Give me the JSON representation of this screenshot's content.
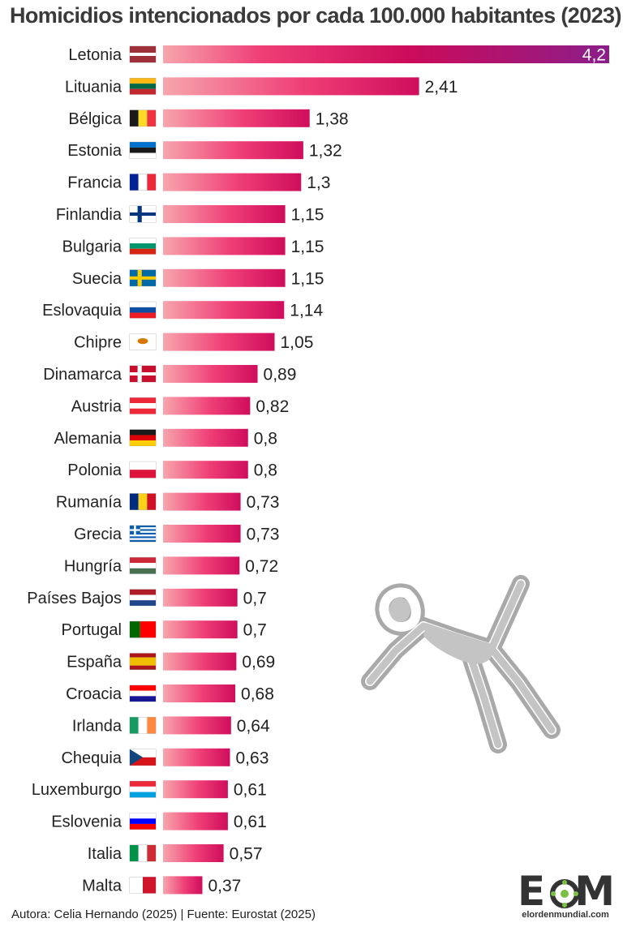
{
  "title": "Homicidios intencionados por cada 100.000 habitantes (2023)",
  "footer": "Autora: Celia Hernando (2025) | Fuente: Eurostat (2025)",
  "logo": {
    "letters": "EOM",
    "site": "elordenmundial.com"
  },
  "colors": {
    "bar_start": "#f7a5ad",
    "bar_mid": "#f03a74",
    "bar_deep": "#cc0b5a",
    "bar_top_end": "#8b1e8a",
    "text": "#222222"
  },
  "icons": {
    "figure": "body-outline-icon"
  },
  "chart_data": {
    "type": "bar",
    "orientation": "horizontal",
    "title": "Homicidios intencionados por cada 100.000 habitantes (2023)",
    "xlabel": "",
    "ylabel": "",
    "xlim": [
      0,
      4.2
    ],
    "grid": false,
    "legend": "none",
    "bars": [
      {
        "label": "Letonia",
        "value": 4.2,
        "value_label": "4,2",
        "flag": [
          [
            "#9e3039",
            "#ffffff",
            "#9e3039"
          ],
          "h",
          [
            2,
            1,
            2
          ]
        ]
      },
      {
        "label": "Lituania",
        "value": 2.41,
        "value_label": "2,41",
        "flag": [
          [
            "#fdb913",
            "#006a44",
            "#c1272d"
          ],
          "h"
        ]
      },
      {
        "label": "Bélgica",
        "value": 1.38,
        "value_label": "1,38",
        "flag": [
          [
            "#1a1a1a",
            "#fdda24",
            "#ef3340"
          ],
          "v"
        ]
      },
      {
        "label": "Estonia",
        "value": 1.32,
        "value_label": "1,32",
        "flag": [
          [
            "#0072ce",
            "#1a1a1a",
            "#ffffff"
          ],
          "h"
        ]
      },
      {
        "label": "Francia",
        "value": 1.3,
        "value_label": "1,3",
        "flag": [
          [
            "#002395",
            "#ffffff",
            "#ed2939"
          ],
          "v"
        ]
      },
      {
        "label": "Finlandia",
        "value": 1.15,
        "value_label": "1,15",
        "flag": [
          [
            "#ffffff",
            "#003580"
          ],
          "nordic"
        ]
      },
      {
        "label": "Bulgaria",
        "value": 1.15,
        "value_label": "1,15",
        "flag": [
          [
            "#ffffff",
            "#00966e",
            "#d62612"
          ],
          "h"
        ]
      },
      {
        "label": "Suecia",
        "value": 1.15,
        "value_label": "1,15",
        "flag": [
          [
            "#006aa7",
            "#fecc00"
          ],
          "nordic"
        ]
      },
      {
        "label": "Eslovaquia",
        "value": 1.14,
        "value_label": "1,14",
        "flag": [
          [
            "#ffffff",
            "#0b4ea2",
            "#ee1c25"
          ],
          "h"
        ]
      },
      {
        "label": "Chipre",
        "value": 1.05,
        "value_label": "1,05",
        "flag": [
          [
            "#ffffff",
            "#d57800"
          ],
          "center"
        ]
      },
      {
        "label": "Dinamarca",
        "value": 0.89,
        "value_label": "0,89",
        "flag": [
          [
            "#c8102e",
            "#ffffff"
          ],
          "nordic"
        ]
      },
      {
        "label": "Austria",
        "value": 0.82,
        "value_label": "0,82",
        "flag": [
          [
            "#ed2939",
            "#ffffff",
            "#ed2939"
          ],
          "h"
        ]
      },
      {
        "label": "Alemania",
        "value": 0.8,
        "value_label": "0,8",
        "flag": [
          [
            "#1a1a1a",
            "#dd0000",
            "#ffce00"
          ],
          "h"
        ]
      },
      {
        "label": "Polonia",
        "value": 0.8,
        "value_label": "0,8",
        "flag": [
          [
            "#ffffff",
            "#dc143c"
          ],
          "h"
        ]
      },
      {
        "label": "Rumanía",
        "value": 0.73,
        "value_label": "0,73",
        "flag": [
          [
            "#002b7f",
            "#fcd116",
            "#ce1126"
          ],
          "v"
        ]
      },
      {
        "label": "Grecia",
        "value": 0.73,
        "value_label": "0,73",
        "flag": [
          [
            "#0d5eaf",
            "#ffffff"
          ],
          "stripes9"
        ]
      },
      {
        "label": "Hungría",
        "value": 0.72,
        "value_label": "0,72",
        "flag": [
          [
            "#ce2939",
            "#ffffff",
            "#477050"
          ],
          "h"
        ]
      },
      {
        "label": "Países Bajos",
        "value": 0.7,
        "value_label": "0,7",
        "flag": [
          [
            "#ae1c28",
            "#ffffff",
            "#21468b"
          ],
          "h"
        ]
      },
      {
        "label": "Portugal",
        "value": 0.7,
        "value_label": "0,7",
        "flag": [
          [
            "#006600",
            "#ff0000"
          ],
          "v",
          [
            2,
            3
          ]
        ]
      },
      {
        "label": "España",
        "value": 0.69,
        "value_label": "0,69",
        "flag": [
          [
            "#aa151b",
            "#f1bf00",
            "#aa151b"
          ],
          "h",
          [
            1,
            2,
            1
          ]
        ]
      },
      {
        "label": "Croacia",
        "value": 0.68,
        "value_label": "0,68",
        "flag": [
          [
            "#ff0000",
            "#ffffff",
            "#171796"
          ],
          "h"
        ]
      },
      {
        "label": "Irlanda",
        "value": 0.64,
        "value_label": "0,64",
        "flag": [
          [
            "#169b62",
            "#ffffff",
            "#ff883e"
          ],
          "v"
        ]
      },
      {
        "label": "Chequia",
        "value": 0.63,
        "value_label": "0,63",
        "flag": [
          [
            "#ffffff",
            "#d7141a",
            "#11457e"
          ],
          "czech"
        ]
      },
      {
        "label": "Luxemburgo",
        "value": 0.61,
        "value_label": "0,61",
        "flag": [
          [
            "#ed2939",
            "#ffffff",
            "#00a1de"
          ],
          "h"
        ]
      },
      {
        "label": "Eslovenia",
        "value": 0.61,
        "value_label": "0,61",
        "flag": [
          [
            "#ffffff",
            "#0000ff",
            "#ff0000"
          ],
          "h"
        ]
      },
      {
        "label": "Italia",
        "value": 0.57,
        "value_label": "0,57",
        "flag": [
          [
            "#009246",
            "#ffffff",
            "#ce2b37"
          ],
          "v"
        ]
      },
      {
        "label": "Malta",
        "value": 0.37,
        "value_label": "0,37",
        "flag": [
          [
            "#ffffff",
            "#cf142b"
          ],
          "v"
        ]
      }
    ]
  }
}
